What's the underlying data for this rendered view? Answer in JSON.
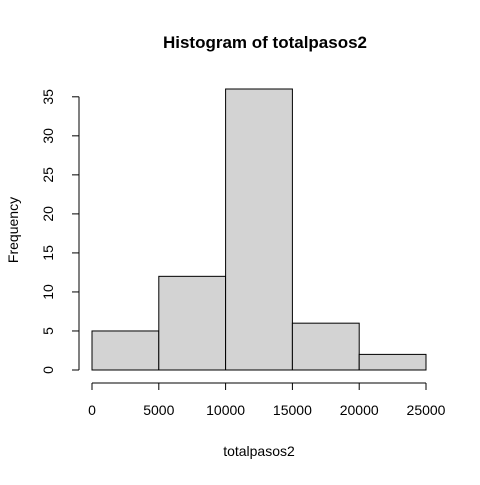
{
  "chart_data": {
    "type": "histogram",
    "title": "Histogram of totalpasos2",
    "xlabel": "totalpasos2",
    "ylabel": "Frequency",
    "bins": [
      {
        "from": 0,
        "to": 5000,
        "count": 5
      },
      {
        "from": 5000,
        "to": 10000,
        "count": 12
      },
      {
        "from": 10000,
        "to": 15000,
        "count": 36
      },
      {
        "from": 15000,
        "to": 20000,
        "count": 6
      },
      {
        "from": 20000,
        "to": 25000,
        "count": 2
      }
    ],
    "x_ticks": [
      0,
      5000,
      10000,
      15000,
      20000,
      25000
    ],
    "y_ticks": [
      0,
      5,
      10,
      15,
      20,
      25,
      30,
      35
    ],
    "xlim": [
      0,
      25000
    ],
    "ylim": [
      0,
      36
    ],
    "grid": false,
    "colors": {
      "bar_fill": "#d3d3d3",
      "bar_stroke": "#000000",
      "axis": "#000000",
      "text": "#000000"
    }
  }
}
